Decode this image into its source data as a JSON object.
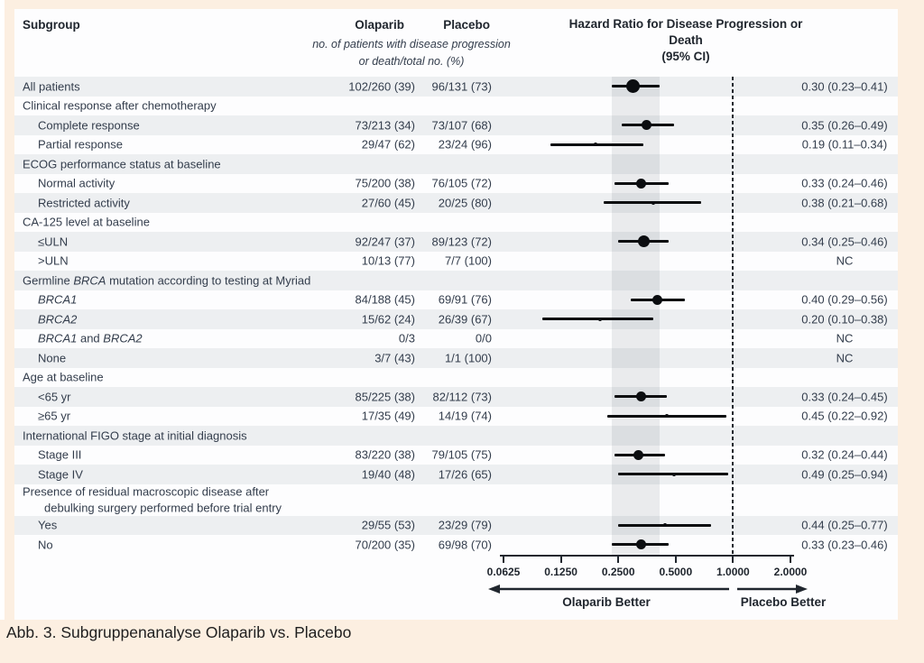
{
  "figure": {
    "caption": "Abb. 3. Subgruppenanalyse Olaparib vs. Placebo"
  },
  "table": {
    "col_subgroup": "Subgroup",
    "col_olaparib": "Olaparib",
    "col_placebo": "Placebo",
    "subheader_line1": "no. of patients with disease progression",
    "subheader_line2": "or death/total no. (%)",
    "col_hr_line1": "Hazard Ratio for Disease Progression or Death",
    "col_hr_line2": "(95% CI)"
  },
  "colors": {
    "background_cream": "#fcefe1",
    "row_stripe": "#edeff1",
    "panel_white": "#fdfdfe",
    "marker_black": "#0b0d10",
    "text_ink": "#333d4c"
  },
  "chart_data": {
    "type": "forest",
    "title": "Hazard Ratio for Disease Progression or Death (95% CI)",
    "x_axis": {
      "scale": "log2",
      "min": 0.0625,
      "max": 2.0,
      "ticks": [
        {
          "v": 0.0625,
          "label": "0.0625"
        },
        {
          "v": 0.125,
          "label": "0.1250"
        },
        {
          "v": 0.25,
          "label": "0.2500"
        },
        {
          "v": 0.5,
          "label": "0.5000"
        },
        {
          "v": 1.0,
          "label": "1.0000"
        },
        {
          "v": 2.0,
          "label": "2.0000"
        }
      ],
      "left_label": "Olaparib Better",
      "right_label": "Placebo Better"
    },
    "reference_line": 1.0,
    "shaded_band": [
      0.23,
      0.41
    ],
    "rows": [
      {
        "segs": [
          {
            "t": "All patients"
          }
        ],
        "indent": 0,
        "shaded": true,
        "ola": "102/260 (39)",
        "pla": "96/131 (73)",
        "hr_text": "0.30 (0.23–0.41)",
        "hr": 0.3,
        "lo": 0.23,
        "hi": 0.41,
        "size": "xl"
      },
      {
        "segs": [
          {
            "t": "Clinical response after chemotherapy"
          }
        ],
        "type": "header",
        "indent": 0,
        "shaded": false
      },
      {
        "segs": [
          {
            "t": "Complete response"
          }
        ],
        "indent": 1,
        "shaded": true,
        "ola": "73/213 (34)",
        "pla": "73/107 (68)",
        "hr_text": "0.35 (0.26–0.49)",
        "hr": 0.35,
        "lo": 0.26,
        "hi": 0.49,
        "size": "m"
      },
      {
        "segs": [
          {
            "t": "Partial response"
          }
        ],
        "indent": 1,
        "shaded": false,
        "ola": "29/47 (62)",
        "pla": "23/24 (96)",
        "hr_text": "0.19 (0.11–0.34)",
        "hr": 0.19,
        "lo": 0.11,
        "hi": 0.34,
        "size": "xs"
      },
      {
        "segs": [
          {
            "t": "ECOG performance status at baseline"
          }
        ],
        "type": "header",
        "indent": 0,
        "shaded": true
      },
      {
        "segs": [
          {
            "t": "Normal activity"
          }
        ],
        "indent": 1,
        "shaded": false,
        "ola": "75/200 (38)",
        "pla": "76/105 (72)",
        "hr_text": "0.33 (0.24–0.46)",
        "hr": 0.33,
        "lo": 0.24,
        "hi": 0.46,
        "size": "m"
      },
      {
        "segs": [
          {
            "t": "Restricted activity"
          }
        ],
        "indent": 1,
        "shaded": true,
        "ola": "27/60 (45)",
        "pla": "20/25 (80)",
        "hr_text": "0.38 (0.21–0.68)",
        "hr": 0.38,
        "lo": 0.21,
        "hi": 0.68,
        "size": "xs"
      },
      {
        "segs": [
          {
            "t": "CA-125 level at baseline"
          }
        ],
        "type": "header",
        "indent": 0,
        "shaded": false
      },
      {
        "segs": [
          {
            "t": "≤ULN"
          }
        ],
        "indent": 1,
        "shaded": true,
        "ola": "92/247 (37)",
        "pla": "89/123 (72)",
        "hr_text": "0.34 (0.25–0.46)",
        "hr": 0.34,
        "lo": 0.25,
        "hi": 0.46,
        "size": "l"
      },
      {
        "segs": [
          {
            "t": ">ULN"
          }
        ],
        "indent": 1,
        "shaded": false,
        "ola": "10/13 (77)",
        "pla": "7/7 (100)",
        "hr_text": "NC"
      },
      {
        "segs": [
          {
            "t": "Germline "
          },
          {
            "t": "BRCA",
            "i": true
          },
          {
            "t": " mutation according to testing at Myriad"
          }
        ],
        "type": "header",
        "indent": 0,
        "shaded": true
      },
      {
        "segs": [
          {
            "t": "BRCA1",
            "i": true
          }
        ],
        "indent": 1,
        "shaded": false,
        "ola": "84/188 (45)",
        "pla": "69/91 (76)",
        "hr_text": "0.40 (0.29–0.56)",
        "hr": 0.4,
        "lo": 0.29,
        "hi": 0.56,
        "size": "m"
      },
      {
        "segs": [
          {
            "t": "BRCA2",
            "i": true
          }
        ],
        "indent": 1,
        "shaded": true,
        "ola": "15/62 (24)",
        "pla": "26/39 (67)",
        "hr_text": "0.20 (0.10–0.38)",
        "hr": 0.2,
        "lo": 0.1,
        "hi": 0.38,
        "size": "xs"
      },
      {
        "segs": [
          {
            "t": "BRCA1",
            "i": true
          },
          {
            "t": " and "
          },
          {
            "t": "BRCA2",
            "i": true
          }
        ],
        "indent": 1,
        "shaded": false,
        "ola": "0/3",
        "pla": "0/0",
        "hr_text": "NC"
      },
      {
        "segs": [
          {
            "t": "None"
          }
        ],
        "indent": 1,
        "shaded": true,
        "ola": "3/7 (43)",
        "pla": "1/1 (100)",
        "hr_text": "NC"
      },
      {
        "segs": [
          {
            "t": "Age at baseline"
          }
        ],
        "type": "header",
        "indent": 0,
        "shaded": false
      },
      {
        "segs": [
          {
            "t": "<65 yr"
          }
        ],
        "indent": 1,
        "shaded": true,
        "ola": "85/225 (38)",
        "pla": "82/112 (73)",
        "hr_text": "0.33 (0.24–0.45)",
        "hr": 0.33,
        "lo": 0.24,
        "hi": 0.45,
        "size": "m"
      },
      {
        "segs": [
          {
            "t": "≥65 yr"
          }
        ],
        "indent": 1,
        "shaded": false,
        "ola": "17/35 (49)",
        "pla": "14/19 (74)",
        "hr_text": "0.45 (0.22–0.92)",
        "hr": 0.45,
        "lo": 0.22,
        "hi": 0.92,
        "size": "xs"
      },
      {
        "segs": [
          {
            "t": "International FIGO stage at initial diagnosis"
          }
        ],
        "type": "header",
        "indent": 0,
        "shaded": true
      },
      {
        "segs": [
          {
            "t": "Stage III"
          }
        ],
        "indent": 1,
        "shaded": false,
        "ola": "83/220 (38)",
        "pla": "79/105 (75)",
        "hr_text": "0.32 (0.24–0.44)",
        "hr": 0.32,
        "lo": 0.24,
        "hi": 0.44,
        "size": "m"
      },
      {
        "segs": [
          {
            "t": "Stage IV"
          }
        ],
        "indent": 1,
        "shaded": true,
        "ola": "19/40 (48)",
        "pla": "17/26 (65)",
        "hr_text": "0.49 (0.25–0.94)",
        "hr": 0.49,
        "lo": 0.25,
        "hi": 0.94,
        "size": "xs"
      },
      {
        "segs": [
          {
            "t": "Presence of residual macroscopic disease after"
          }
        ],
        "type": "header",
        "indent": 0,
        "shaded": false,
        "h": 17.5
      },
      {
        "segs": [
          {
            "t": "debulking surgery performed before trial entry"
          }
        ],
        "type": "header",
        "indent": 2,
        "shaded": false,
        "h": 17.5
      },
      {
        "segs": [
          {
            "t": "Yes"
          }
        ],
        "indent": 1,
        "shaded": true,
        "ola": "29/55 (53)",
        "pla": "23/29 (79)",
        "hr_text": "0.44 (0.25–0.77)",
        "hr": 0.44,
        "lo": 0.25,
        "hi": 0.77,
        "size": "xs"
      },
      {
        "segs": [
          {
            "t": "No"
          }
        ],
        "indent": 1,
        "shaded": false,
        "ola": "70/200 (35)",
        "pla": "69/98 (70)",
        "hr_text": "0.33 (0.23–0.46)",
        "hr": 0.33,
        "lo": 0.23,
        "hi": 0.46,
        "size": "m"
      }
    ]
  }
}
